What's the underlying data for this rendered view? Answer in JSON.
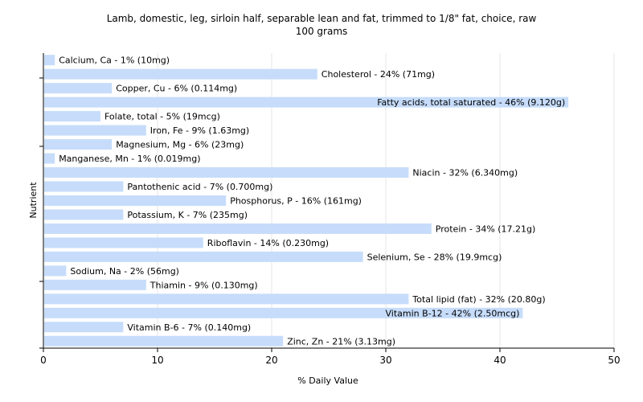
{
  "chart_data": {
    "type": "bar",
    "orientation": "horizontal",
    "title": "Lamb, domestic, leg, sirloin half, separable lean and fat, trimmed to 1/8\" fat, choice, raw",
    "subtitle": "100 grams",
    "xlabel": "% Daily Value",
    "ylabel": "Nutrient",
    "xlim": [
      0,
      50
    ],
    "xticks": [
      0,
      10,
      20,
      30,
      40,
      50
    ],
    "grid": "vertical",
    "bar_color": "#c6dcfa",
    "categories": [
      "Calcium, Ca",
      "Cholesterol",
      "Copper, Cu",
      "Fatty acids, total saturated",
      "Folate, total",
      "Iron, Fe",
      "Magnesium, Mg",
      "Manganese, Mn",
      "Niacin",
      "Pantothenic acid",
      "Phosphorus, P",
      "Potassium, K",
      "Protein",
      "Riboflavin",
      "Selenium, Se",
      "Sodium, Na",
      "Thiamin",
      "Total lipid (fat)",
      "Vitamin B-12",
      "Vitamin B-6",
      "Zinc, Zn"
    ],
    "values": [
      1,
      24,
      6,
      46,
      5,
      9,
      6,
      1,
      32,
      7,
      16,
      7,
      34,
      14,
      28,
      2,
      9,
      32,
      42,
      7,
      21
    ],
    "labels": [
      "Calcium, Ca - 1% (10mg)",
      "Cholesterol - 24% (71mg)",
      "Copper, Cu - 6% (0.114mg)",
      "Fatty acids, total saturated - 46% (9.120g)",
      "Folate, total - 5% (19mcg)",
      "Iron, Fe - 9% (1.63mg)",
      "Magnesium, Mg - 6% (23mg)",
      "Manganese, Mn - 1% (0.019mg)",
      "Niacin - 32% (6.340mg)",
      "Pantothenic acid - 7% (0.700mg)",
      "Phosphorus, P - 16% (161mg)",
      "Potassium, K - 7% (235mg)",
      "Protein - 34% (17.21g)",
      "Riboflavin - 14% (0.230mg)",
      "Selenium, Se - 28% (19.9mcg)",
      "Sodium, Na - 2% (56mg)",
      "Thiamin - 9% (0.130mg)",
      "Total lipid (fat) - 32% (20.80g)",
      "Vitamin B-12 - 42% (2.50mcg)",
      "Vitamin B-6 - 7% (0.140mg)",
      "Zinc, Zn - 21% (3.13mg)"
    ]
  }
}
